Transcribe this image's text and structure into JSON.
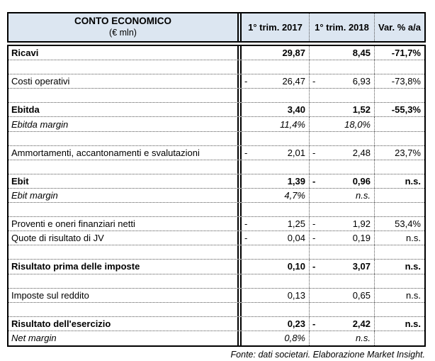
{
  "table": {
    "header": {
      "title": "CONTO ECONOMICO",
      "subtitle": "(€ mln)",
      "columns": [
        "1° trim. 2017",
        "1° trim. 2018",
        "Var. % a/a"
      ]
    },
    "rows": [
      {
        "type": "bold",
        "label": "Ricavi",
        "n17": "",
        "v17": "29,87",
        "n18": "",
        "v18": "8,45",
        "var": "-71,7%"
      },
      {
        "type": "empty",
        "label": "",
        "n17": "",
        "v17": "",
        "n18": "",
        "v18": "",
        "var": ""
      },
      {
        "type": "normal",
        "label": "Costi operativi",
        "n17": "-",
        "v17": "26,47",
        "n18": "-",
        "v18": "6,93",
        "var": "-73,8%"
      },
      {
        "type": "empty",
        "label": "",
        "n17": "",
        "v17": "",
        "n18": "",
        "v18": "",
        "var": ""
      },
      {
        "type": "bold",
        "label": "Ebitda",
        "n17": "",
        "v17": "3,40",
        "n18": "",
        "v18": "1,52",
        "var": "-55,3%"
      },
      {
        "type": "margin",
        "label": "Ebitda margin",
        "n17": "",
        "v17": "11,4%",
        "n18": "",
        "v18": "18,0%",
        "var": ""
      },
      {
        "type": "empty",
        "label": "",
        "n17": "",
        "v17": "",
        "n18": "",
        "v18": "",
        "var": ""
      },
      {
        "type": "normal",
        "label": "Ammortamenti, accantonamenti e svalutazioni",
        "n17": "-",
        "v17": "2,01",
        "n18": "-",
        "v18": "2,48",
        "var": "23,7%"
      },
      {
        "type": "empty",
        "label": "",
        "n17": "",
        "v17": "",
        "n18": "",
        "v18": "",
        "var": ""
      },
      {
        "type": "bold",
        "label": "Ebit",
        "n17": "",
        "v17": "1,39",
        "n18": "-",
        "v18": "0,96",
        "var": "n.s."
      },
      {
        "type": "margin",
        "label": "Ebit margin",
        "n17": "",
        "v17": "4,7%",
        "n18": "",
        "v18": "n.s.",
        "var": ""
      },
      {
        "type": "empty",
        "label": "",
        "n17": "",
        "v17": "",
        "n18": "",
        "v18": "",
        "var": ""
      },
      {
        "type": "normal",
        "label": "Proventi e oneri finanziari netti",
        "n17": "-",
        "v17": "1,25",
        "n18": "-",
        "v18": "1,92",
        "var": "53,4%"
      },
      {
        "type": "normal",
        "label": "Quote di risultato di JV",
        "n17": "-",
        "v17": "0,04",
        "n18": "-",
        "v18": "0,19",
        "var": "n.s."
      },
      {
        "type": "empty",
        "label": "",
        "n17": "",
        "v17": "",
        "n18": "",
        "v18": "",
        "var": ""
      },
      {
        "type": "bold",
        "label": "Risultato prima delle imposte",
        "n17": "",
        "v17": "0,10",
        "n18": "-",
        "v18": "3,07",
        "var": "n.s."
      },
      {
        "type": "empty",
        "label": "",
        "n17": "",
        "v17": "",
        "n18": "",
        "v18": "",
        "var": ""
      },
      {
        "type": "normal",
        "label": "Imposte sul reddito",
        "n17": "",
        "v17": "0,13",
        "n18": "",
        "v18": "0,65",
        "var": "n.s."
      },
      {
        "type": "empty",
        "label": "",
        "n17": "",
        "v17": "",
        "n18": "",
        "v18": "",
        "var": ""
      },
      {
        "type": "bold",
        "label": "Risultato dell'esercizio",
        "n17": "",
        "v17": "0,23",
        "n18": "-",
        "v18": "2,42",
        "var": "n.s."
      },
      {
        "type": "margin",
        "label": "Net margin",
        "n17": "",
        "v17": "0,8%",
        "n18": "",
        "v18": "n.s.",
        "var": ""
      }
    ],
    "footer": "Fonte: dati societari. Elaborazione Market Insight."
  },
  "colors": {
    "header_bg": "#dce6f1",
    "border": "#000000",
    "dotted_line": "#555555"
  }
}
